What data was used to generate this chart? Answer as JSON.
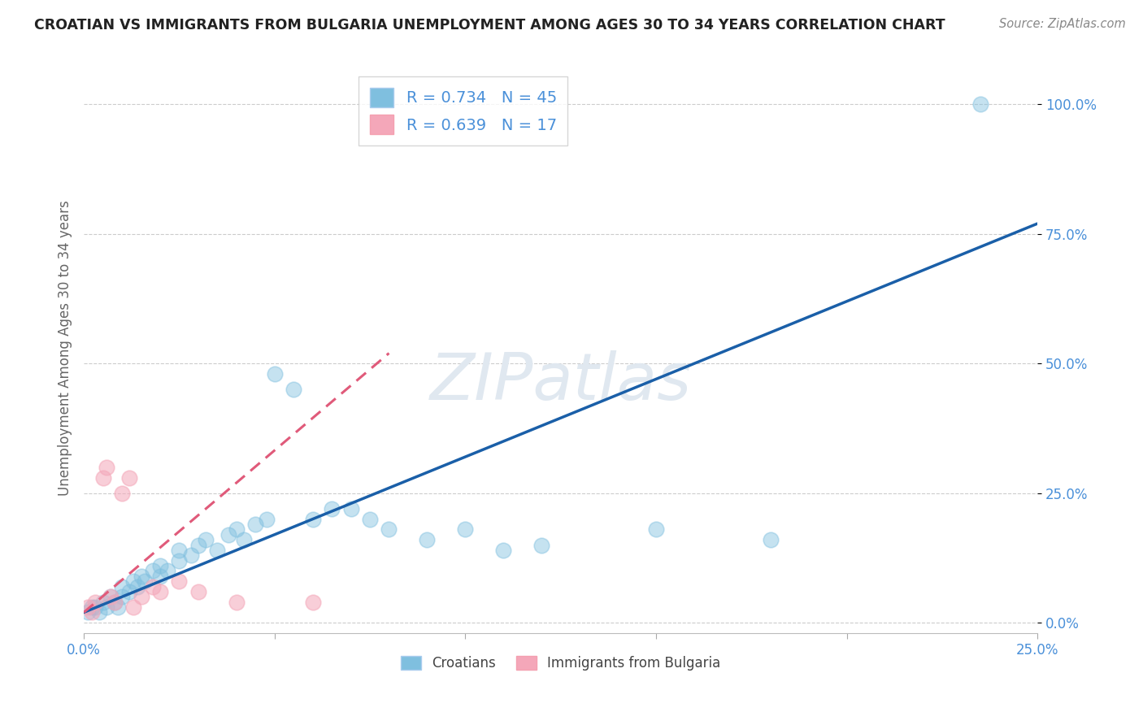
{
  "title": "CROATIAN VS IMMIGRANTS FROM BULGARIA UNEMPLOYMENT AMONG AGES 30 TO 34 YEARS CORRELATION CHART",
  "source": "Source: ZipAtlas.com",
  "ylabel": "Unemployment Among Ages 30 to 34 years",
  "xlim": [
    0.0,
    0.25
  ],
  "ylim": [
    -0.02,
    1.08
  ],
  "xticks": [
    0.0,
    0.05,
    0.1,
    0.15,
    0.2,
    0.25
  ],
  "xticklabels_show": [
    "0.0%",
    "",
    "",
    "",
    "",
    "25.0%"
  ],
  "yticks": [
    0.0,
    0.25,
    0.5,
    0.75,
    1.0
  ],
  "yticklabels": [
    "0.0%",
    "25.0%",
    "50.0%",
    "75.0%",
    "100.0%"
  ],
  "croatians_x": [
    0.001,
    0.002,
    0.003,
    0.004,
    0.005,
    0.006,
    0.007,
    0.008,
    0.009,
    0.01,
    0.01,
    0.012,
    0.013,
    0.014,
    0.015,
    0.016,
    0.018,
    0.02,
    0.02,
    0.022,
    0.025,
    0.025,
    0.028,
    0.03,
    0.032,
    0.035,
    0.038,
    0.04,
    0.042,
    0.045,
    0.048,
    0.05,
    0.055,
    0.06,
    0.065,
    0.07,
    0.075,
    0.08,
    0.09,
    0.1,
    0.11,
    0.12,
    0.15,
    0.18,
    0.235
  ],
  "croatians_y": [
    0.02,
    0.03,
    0.03,
    0.02,
    0.04,
    0.03,
    0.05,
    0.04,
    0.03,
    0.05,
    0.07,
    0.06,
    0.08,
    0.07,
    0.09,
    0.08,
    0.1,
    0.09,
    0.11,
    0.1,
    0.12,
    0.14,
    0.13,
    0.15,
    0.16,
    0.14,
    0.17,
    0.18,
    0.16,
    0.19,
    0.2,
    0.48,
    0.45,
    0.2,
    0.22,
    0.22,
    0.2,
    0.18,
    0.16,
    0.18,
    0.14,
    0.15,
    0.18,
    0.16,
    1.0
  ],
  "bulgaria_x": [
    0.001,
    0.002,
    0.003,
    0.005,
    0.006,
    0.007,
    0.008,
    0.01,
    0.012,
    0.013,
    0.015,
    0.018,
    0.02,
    0.025,
    0.03,
    0.04,
    0.06
  ],
  "bulgaria_y": [
    0.03,
    0.02,
    0.04,
    0.28,
    0.3,
    0.05,
    0.04,
    0.25,
    0.28,
    0.03,
    0.05,
    0.07,
    0.06,
    0.08,
    0.06,
    0.04,
    0.04
  ],
  "croatians_R": 0.734,
  "croatians_N": 45,
  "bulgaria_R": 0.639,
  "bulgaria_N": 17,
  "blue_color": "#7fbfdf",
  "pink_color": "#f4a7b9",
  "blue_line_color": "#1a5fa8",
  "pink_line_color": "#e05a7a",
  "grid_color": "#cccccc",
  "title_color": "#222222",
  "watermark_color": "#e0e8f0",
  "legend_text_color": "#4a90d9",
  "ylabel_color": "#666666",
  "tick_label_color": "#4a90d9",
  "background_color": "#ffffff",
  "source_color": "#888888",
  "bottom_legend_color": "#444444"
}
